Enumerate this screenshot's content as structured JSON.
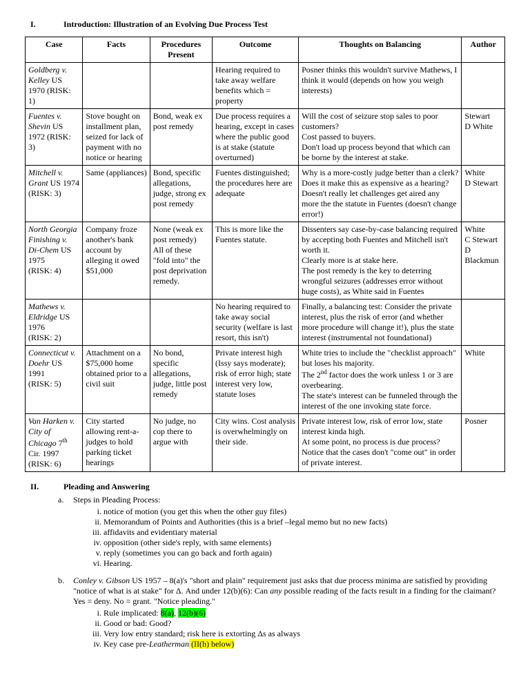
{
  "section1": {
    "roman": "I.",
    "title": "Introduction: Illustration of an Evolving Due Process Test"
  },
  "headers": {
    "case": "Case",
    "facts": "Facts",
    "proc1": "Procedures",
    "proc2": "Present",
    "outcome": "Outcome",
    "thoughts": "Thoughts on Balancing",
    "author": "Author"
  },
  "rows": [
    {
      "case_italic": "Goldberg v. Kelley",
      "case_rest": " US 1970 (RISK: 1)",
      "facts": "",
      "proc": "",
      "outcome": "Hearing required to take away welfare benefits which = property",
      "thoughts": "Posner thinks this wouldn't survive Mathews, I think it would (depends on how you weigh interests)",
      "author": ""
    },
    {
      "case_italic": "Fuentes v. Shevin",
      "case_rest": " US 1972 (RISK: 3)",
      "facts": "Stove bought on installment plan, seized for lack of payment with no notice or hearing",
      "proc": "Bond, weak ex post remedy",
      "outcome": "Due process requires a hearing, except in cases where the public good is at stake (statute overturned)",
      "thoughts": "Will the cost of seizure stop sales to poor customers?\nCost passed to buyers.\nDon't load up process beyond that which can be borne by the interest at stake.",
      "author": "Stewart\nD White"
    },
    {
      "case_italic": "Mitchell v. Grant",
      "case_rest": " US 1974\n(RISK: 3)",
      "facts": "Same (appliances)",
      "proc": "Bond, specific allegations, judge, strong ex post remedy",
      "outcome": "Fuentes distinguished; the procedures here are adequate",
      "thoughts": "Why is a more-costly judge better than a clerk?  Does it make this as expensive as a hearing?\nDoesn't really let challenges get aired any more the the statute in Fuentes (doesn't change error!)",
      "author": "White\nD Stewart"
    },
    {
      "case_italic": "North Georgia Finishing v. Di-Chem",
      "case_rest": " US 1975\n(RISK: 4)",
      "facts": "Company froze another's bank account by alleging it owed $51,000",
      "proc": "None (weak ex post remedy)\nAll of these \"fold into\" the post deprivation remedy.",
      "outcome": "This is more like the Fuentes statute.",
      "thoughts": "Dissenters say case-by-case balancing required by accepting both Fuentes and Mitchell isn't worth it.\nClearly more is at stake here.\nThe post remedy is the key to deterring wrongful seizures (addresses error without huge costs), as White said in Fuentes",
      "author": "White\nC Stewart\nD Blackmun"
    },
    {
      "case_italic": "Mathews v. Eldridge",
      "case_rest": " US 1976\n(RISK: 2)",
      "facts": "",
      "proc": "",
      "outcome": "No hearing required to take away social security (welfare is last resort, this isn't)",
      "thoughts": "Finally, a balancing test: Consider the private interest, plus the risk of error (and whether more procedure will change it!), plus the state interest (instrumental not foundational)",
      "author": ""
    },
    {
      "case_italic": "Connecticut v. Doehr",
      "case_rest": " US 1991\n(RISK: 5)",
      "facts": "Attachment on a $75,000 home obtained prior to a civil suit",
      "proc": "No bond, specific allegations, judge, little post remedy",
      "outcome": "Private interest high (Issy says moderate); risk of error high; state interest very low, statute loses",
      "thoughts_html": "White tries to include the \"checklist approach\" but loses his majority.\nThe 2<span class=\"sup\">nd</span> factor does the work unless 1 or 3 are overbearing.\nThe state's interest can be funneled through the interest of the one invoking state force.",
      "author": "White"
    },
    {
      "case_italic": "Van Harken v. City of Chicago",
      "case_rest_html": " 7<span class=\"sup\">th</span> Cir. 1997\n(RISK: 6)",
      "facts": "City started allowing rent-a-judges to hold parking ticket hearings",
      "proc": "No judge, no cop there to argue with",
      "outcome": "City wins.  Cost analysis is overwhelmingly on their side.",
      "thoughts": "Private interest low, risk of error low, state interest kinda high.\nAt some point, no process is due process?\nNotice that the cases don't \"come out\" in order of private interest.",
      "author": "Posner"
    }
  ],
  "section2": {
    "roman": "II.",
    "title": "Pleading and Answering",
    "a_marker": "a.",
    "a_text": "Steps in Pleading Process:",
    "a_items": [
      "notice of motion (you get this when the other guy files)",
      "Memorandum of Points and Authorities (this is a brief –legal memo but no new facts)",
      "affidavits and evidentiary material",
      "opposition (other side's reply, with same elements)",
      "reply (sometimes you can go back and forth again)",
      "Hearing."
    ],
    "b_marker": "b.",
    "b_case_italic": "Conley v. Gibson",
    "b_body1": " US 1957 – 8(a)'s \"short and plain\" requirement just asks that due process minima are satisfied by providing \"notice of what is at stake\" for Δ.  And under 12(b)(6): Can ",
    "b_body_any": "any",
    "b_body2": " possible reading of the facts result in a finding for the claimant?  Yes = deny.  No = grant.  \"Notice pleading.\"",
    "b_i1_pre": "Rule implicated: ",
    "b_i1_hl1": "8(a)",
    "b_i1_mid": ", ",
    "b_i1_hl2": "12(b)(6)",
    "b_i2": "Good or bad: Good?",
    "b_i3": "Very low entry standard; risk here is extorting Δs as always",
    "b_i4_pre": "Key case pre-",
    "b_i4_italic": "Leatherman",
    "b_i4_hl": " (II(h) below)"
  }
}
